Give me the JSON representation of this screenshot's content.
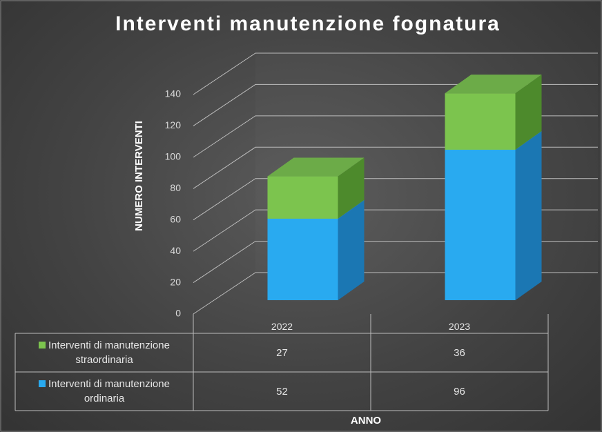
{
  "chart_data": {
    "type": "bar3d_stacked",
    "title": "Interventi manutenzione  fognatura",
    "y_axis_label": "NUMERO INTERVENTI",
    "x_axis_label": "ANNO",
    "categories": [
      "2022",
      "2023"
    ],
    "series": [
      {
        "name": "Interventi di manutenzione straordinaria",
        "color": "#7cc44e",
        "values": [
          27,
          36
        ]
      },
      {
        "name": "Interventi di manutenzione ordinaria",
        "color": "#29aaf0",
        "values": [
          52,
          96
        ]
      }
    ],
    "ylim": [
      0,
      140
    ],
    "yticks": [
      0,
      20,
      40,
      60,
      80,
      100,
      120,
      140
    ],
    "grid": true,
    "data_table": true
  }
}
